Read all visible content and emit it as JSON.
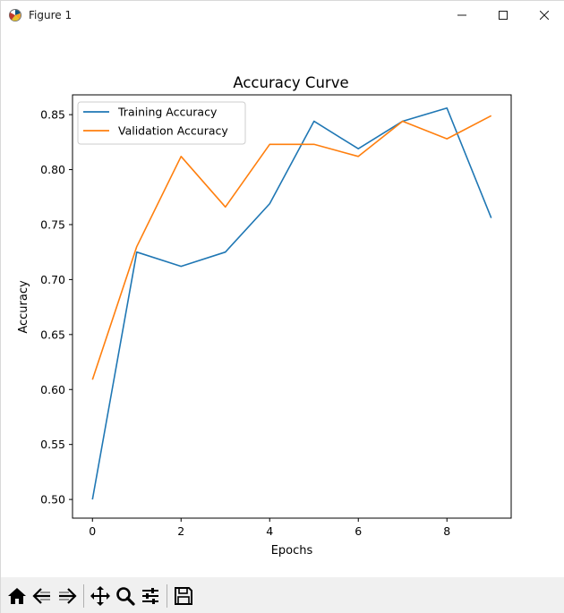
{
  "window": {
    "title": "Figure 1",
    "controls": [
      "minimize",
      "maximize",
      "close"
    ]
  },
  "toolbar": {
    "buttons": [
      {
        "name": "home-icon",
        "tooltip": "Reset original view"
      },
      {
        "name": "back-icon",
        "tooltip": "Back to previous view"
      },
      {
        "name": "forward-icon",
        "tooltip": "Forward to next view"
      },
      {
        "name": "pan-icon",
        "tooltip": "Pan axes"
      },
      {
        "name": "zoom-icon",
        "tooltip": "Zoom to rectangle"
      },
      {
        "name": "configure-subplots-icon",
        "tooltip": "Configure subplots"
      },
      {
        "name": "save-icon",
        "tooltip": "Save the figure"
      }
    ]
  },
  "chart_data": {
    "type": "line",
    "title": "Accuracy Curve",
    "xlabel": "Epochs",
    "ylabel": "Accuracy",
    "x": [
      0,
      1,
      2,
      3,
      4,
      5,
      6,
      7,
      8,
      9
    ],
    "xticks": [
      "0",
      "2",
      "4",
      "6",
      "8"
    ],
    "yticks": [
      "0.50",
      "0.55",
      "0.60",
      "0.65",
      "0.70",
      "0.75",
      "0.80",
      "0.85"
    ],
    "xlim": [
      -0.45,
      9.45
    ],
    "ylim": [
      0.483,
      0.868
    ],
    "legend_position": "upper-left",
    "grid": false,
    "series": [
      {
        "name": "Training Accuracy",
        "color": "#1f77b4",
        "values": [
          0.5,
          0.725,
          0.712,
          0.725,
          0.769,
          0.844,
          0.819,
          0.844,
          0.856,
          0.756
        ]
      },
      {
        "name": "Validation Accuracy",
        "color": "#ff7f0e",
        "values": [
          0.609,
          0.73,
          0.812,
          0.766,
          0.823,
          0.823,
          0.812,
          0.844,
          0.828,
          0.849
        ]
      }
    ]
  }
}
